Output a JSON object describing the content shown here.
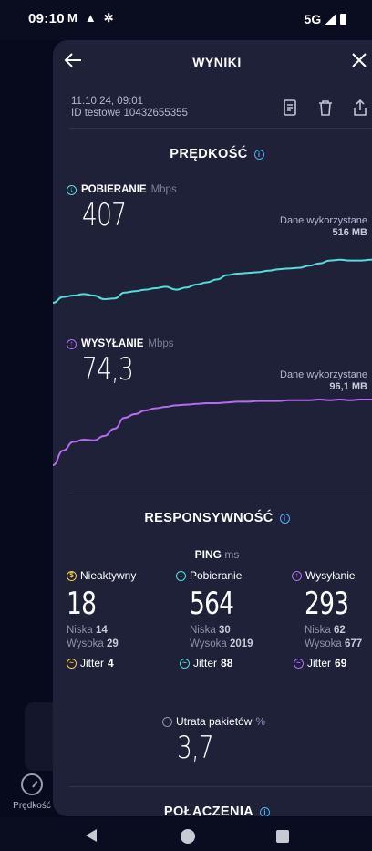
{
  "status": {
    "time": "09:10",
    "network": "5G"
  },
  "under": {
    "nav_label": "Prędkość"
  },
  "header": {
    "title": "WYNIKI"
  },
  "meta": {
    "date": "11.10.24, 09:01",
    "test_id": "ID testowe 10432655355"
  },
  "speed": {
    "title": "PRĘDKOŚĆ",
    "download": {
      "label": "POBIERANIE",
      "unit": "Mbps",
      "value": "407",
      "used_label": "Dane wykorzystane",
      "used_value": "516 MB",
      "color": "#4fe0dc"
    },
    "upload": {
      "label": "WYSYŁANIE",
      "unit": "Mbps",
      "value": "74,3",
      "used_label": "Dane wykorzystane",
      "used_value": "96,1 MB",
      "color": "#b46cf0"
    }
  },
  "chart_data": [
    {
      "type": "line",
      "series": [
        {
          "values": [
            20,
            28,
            30,
            32,
            30,
            25,
            26,
            34,
            36,
            38,
            40,
            42,
            38,
            41,
            45,
            48,
            52,
            58,
            60,
            61,
            62,
            64,
            66,
            67,
            68,
            71,
            74,
            78,
            79,
            78,
            78,
            79,
            80
          ]
        }
      ]
    },
    {
      "type": "line",
      "series": [
        {
          "values": [
            10,
            30,
            42,
            45,
            44,
            50,
            60,
            75,
            80,
            85,
            88,
            90,
            92,
            93,
            94,
            95,
            95,
            96,
            97,
            97,
            98,
            98,
            98,
            99,
            99,
            99,
            100,
            99,
            100,
            99,
            100,
            100,
            100
          ]
        }
      ]
    }
  ],
  "responsiveness": {
    "title": "RESPONSYWNOŚĆ",
    "ping_label": "PING",
    "ping_unit": "ms",
    "columns": [
      {
        "label": "Nieaktywny",
        "value": "18",
        "low_label": "Niska",
        "low": "14",
        "high_label": "Wysoka",
        "high": "29",
        "jitter_label": "Jitter",
        "jitter": "4",
        "color": "#f2c94c"
      },
      {
        "label": "Pobieranie",
        "value": "564",
        "low_label": "Niska",
        "low": "30",
        "high_label": "Wysoka",
        "high": "2019",
        "jitter_label": "Jitter",
        "jitter": "88",
        "color": "#4fe0dc"
      },
      {
        "label": "Wysyłanie",
        "value": "293",
        "low_label": "Niska",
        "low": "62",
        "high_label": "Wysoka",
        "high": "677",
        "jitter_label": "Jitter",
        "jitter": "69",
        "color": "#b46cf0"
      }
    ],
    "packet_loss_label": "Utrata pakietów",
    "packet_loss_unit": "%",
    "packet_loss_value": "3,7"
  },
  "connections": {
    "title": "POŁĄCZENIA"
  }
}
